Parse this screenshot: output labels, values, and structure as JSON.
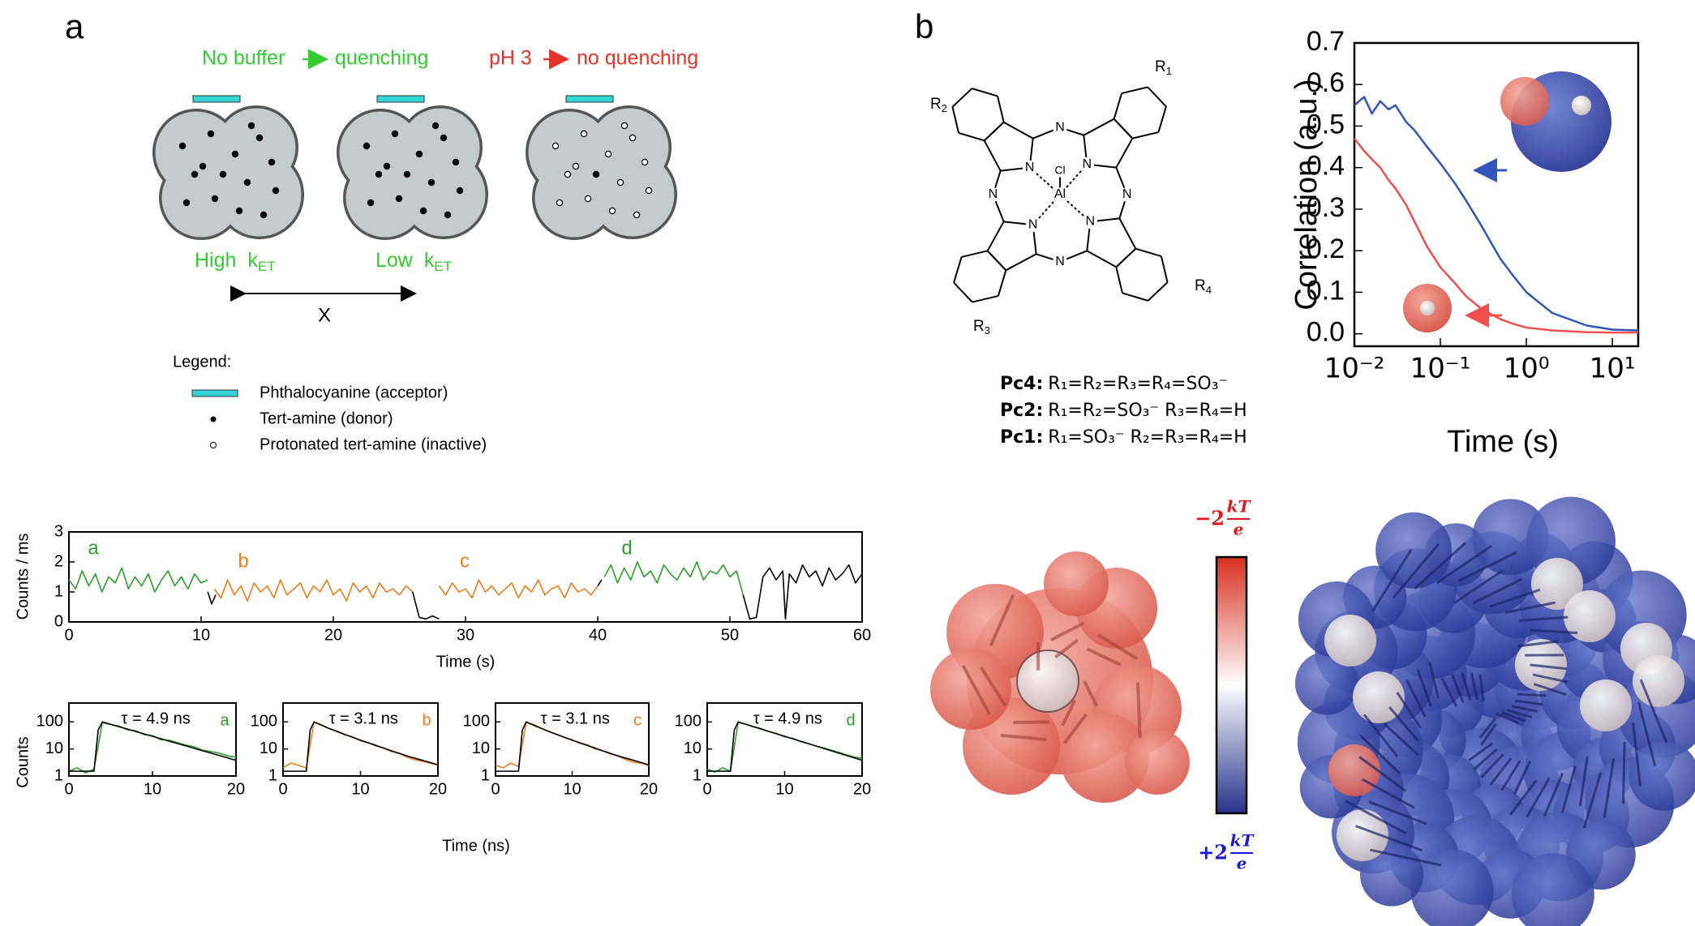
{
  "panel_labels": {
    "a": "a",
    "b": "b"
  },
  "scheme": {
    "condition_1": "No buffer",
    "result_1": "quenching",
    "condition_2": "pH 3",
    "result_2": "no quenching",
    "rate_high": "High",
    "rate_low": "Low",
    "rate_symbol": "k",
    "rate_subscript": "ET",
    "axis_label": "X"
  },
  "legend": {
    "title": "Legend:",
    "items": [
      "Phthalocyanine  (acceptor)",
      "Tert-amine  (donor)",
      "Protonated  tert-amine  (inactive)"
    ]
  },
  "structure": {
    "nitrogen": "N",
    "metal": "Al",
    "axial": "Cl",
    "substituents": [
      {
        "base": "R",
        "sub": "1"
      },
      {
        "base": "R",
        "sub": "2"
      },
      {
        "base": "R",
        "sub": "3"
      },
      {
        "base": "R",
        "sub": "4"
      }
    ]
  },
  "compounds": [
    {
      "name": "Pc4:",
      "formula": "R₁=R₂=R₃=R₄=SO₃⁻"
    },
    {
      "name": "Pc2:",
      "formula": "R₁=R₂=SO₃⁻  R₃=R₄=H"
    },
    {
      "name": "Pc1:",
      "formula": "R₁=SO₃⁻  R₂=R₃=R₄=H"
    }
  ],
  "colorbar": {
    "top": {
      "coef": "−2",
      "num": "kT",
      "den": "e"
    },
    "bottom": {
      "coef": "+2",
      "num": "kT",
      "den": "e"
    },
    "colors": [
      "#d7301f",
      "#ffffff",
      "#26328c"
    ]
  },
  "chart_data": [
    {
      "type": "line",
      "xlabel": "Time (s)",
      "ylabel": "Counts / ms",
      "xlim": [
        0,
        60
      ],
      "ylim": [
        0,
        3
      ],
      "xticks": [
        0,
        10,
        20,
        30,
        40,
        50,
        60
      ],
      "yticks": [
        0,
        1,
        2,
        3
      ],
      "annotations": [
        {
          "text": "a",
          "color": "#2ca02c"
        },
        {
          "text": "b",
          "color": "#f07d1a"
        },
        {
          "text": "c",
          "color": "#f07d1a"
        },
        {
          "text": "d",
          "color": "#2ca02c"
        }
      ],
      "series": [
        {
          "color": "#2ca02c",
          "x": [
            0,
            0.5,
            1,
            1.5,
            2,
            2.5,
            3,
            3.5,
            4,
            4.5,
            5,
            5.5,
            6,
            6.5,
            7,
            7.5,
            8,
            8.5,
            9,
            9.5,
            10,
            10.5
          ],
          "values": [
            1.4,
            1.1,
            1.7,
            1.2,
            1.6,
            1.0,
            1.5,
            1.3,
            1.8,
            1.1,
            1.5,
            1.2,
            1.6,
            1.0,
            1.4,
            1.7,
            1.2,
            1.5,
            1.1,
            1.6,
            1.3,
            1.4
          ]
        },
        {
          "color": "#000000",
          "x": [
            10.5,
            10.8,
            11.1
          ],
          "values": [
            1.0,
            0.6,
            0.9
          ]
        },
        {
          "color": "#f07d1a",
          "x": [
            11,
            11.5,
            12,
            12.5,
            13,
            13.5,
            14,
            14.5,
            15,
            15.5,
            16,
            16.5,
            17,
            17.5,
            18,
            18.5,
            19,
            19.5,
            20,
            20.5,
            21,
            21.5,
            22,
            22.5,
            23,
            23.5,
            24,
            24.5,
            25,
            25.5,
            26
          ],
          "values": [
            1.1,
            0.8,
            1.4,
            0.9,
            1.2,
            0.7,
            1.3,
            1.0,
            1.2,
            0.8,
            1.4,
            0.9,
            1.1,
            1.3,
            0.8,
            1.2,
            1.0,
            1.4,
            0.9,
            1.1,
            0.7,
            1.3,
            1.0,
            1.2,
            0.8,
            1.3,
            1.0,
            1.1,
            0.9,
            1.2,
            1.0
          ]
        },
        {
          "color": "#000000",
          "x": [
            26,
            26.5,
            27,
            27.5,
            28
          ],
          "values": [
            1.0,
            0.15,
            0.1,
            0.2,
            0.1
          ]
        },
        {
          "color": "#f07d1a",
          "x": [
            28,
            28.5,
            29,
            29.5,
            30,
            30.5,
            31,
            31.5,
            32,
            32.5,
            33,
            33.5,
            34,
            34.5,
            35,
            35.5,
            36,
            36.5,
            37,
            37.5,
            38,
            38.5,
            39,
            39.5,
            40
          ],
          "values": [
            1.2,
            0.9,
            1.3,
            1.0,
            1.1,
            0.8,
            1.4,
            1.0,
            1.2,
            0.9,
            1.1,
            1.3,
            0.8,
            1.2,
            1.0,
            1.4,
            0.9,
            1.1,
            1.2,
            0.8,
            1.3,
            1.0,
            1.1,
            0.9,
            1.2
          ]
        },
        {
          "color": "#000000",
          "x": [
            40,
            40.3
          ],
          "values": [
            1.2,
            1.4
          ]
        },
        {
          "color": "#2ca02c",
          "x": [
            40.5,
            41,
            41.5,
            42,
            42.5,
            43,
            43.5,
            44,
            44.5,
            45,
            45.5,
            46,
            46.5,
            47,
            47.5,
            48,
            48.5,
            49,
            49.5,
            50,
            50.5,
            51
          ],
          "values": [
            1.5,
            1.9,
            1.3,
            1.8,
            1.4,
            2.0,
            1.5,
            1.7,
            1.3,
            1.9,
            1.6,
            1.4,
            1.8,
            1.5,
            2.0,
            1.4,
            1.7,
            1.6,
            1.9,
            1.5,
            1.7,
            0.9
          ]
        },
        {
          "color": "#000000",
          "x": [
            51,
            51.5,
            52,
            52.5,
            53,
            53.5,
            54,
            54.2,
            54.5,
            55,
            55.5,
            56,
            56.5,
            57,
            57.5,
            58,
            58.5,
            59,
            59.5,
            60
          ],
          "values": [
            0.9,
            0.1,
            0.15,
            1.5,
            1.8,
            1.4,
            1.7,
            0.1,
            1.6,
            1.3,
            1.9,
            1.5,
            1.7,
            1.2,
            1.8,
            1.4,
            1.6,
            1.9,
            1.3,
            1.6
          ]
        }
      ]
    },
    {
      "type": "line",
      "ylabel": "Counts",
      "ylog": true,
      "xlim": [
        0,
        20
      ],
      "ylim": [
        1,
        500
      ],
      "xticks": [
        0,
        10,
        20
      ],
      "yticks": [
        1,
        10,
        100
      ],
      "annotations": [
        {
          "text": "τ = 4.9 ns",
          "color": "#000000"
        },
        {
          "text": "a",
          "color": "#2ca02c"
        }
      ],
      "series": [
        {
          "color": "#2ca02c",
          "x": [
            0,
            1,
            2,
            3,
            4,
            5,
            6,
            7,
            8,
            9,
            10,
            11,
            12,
            13,
            14,
            15,
            16,
            17,
            18,
            19,
            20
          ],
          "values": [
            1.5,
            2,
            1.3,
            1.8,
            95,
            80,
            70,
            52,
            47,
            34,
            31,
            22,
            21,
            17,
            14,
            12,
            9,
            8,
            7,
            5.5,
            5
          ]
        },
        {
          "color": "#000000",
          "x": [
            0,
            3,
            3.5,
            4,
            5,
            6,
            7,
            8,
            9,
            10,
            11,
            12,
            14,
            16,
            18,
            20
          ],
          "values": [
            1.5,
            1.5,
            50,
            100,
            81.5,
            66.5,
            54.2,
            44.2,
            36,
            29.4,
            23.9,
            19.5,
            13,
            8.6,
            5.7,
            3.8
          ]
        }
      ]
    },
    {
      "type": "line",
      "xlabel": "Time (ns)",
      "ylog": true,
      "xlim": [
        0,
        20
      ],
      "ylim": [
        1,
        500
      ],
      "xticks": [
        0,
        10,
        20
      ],
      "yticks": [
        1,
        10,
        100
      ],
      "annotations": [
        {
          "text": "τ = 3.1 ns",
          "color": "#000000"
        },
        {
          "text": "b",
          "color": "#f07d1a"
        }
      ],
      "series": [
        {
          "color": "#f07d1a",
          "x": [
            0,
            1,
            2,
            3,
            4,
            5,
            6,
            7,
            8,
            9,
            10,
            11,
            12,
            13,
            14,
            15,
            16,
            17,
            18,
            19,
            20
          ],
          "values": [
            2,
            3,
            2.5,
            2,
            98,
            78,
            55,
            46,
            33,
            28,
            20,
            17,
            13,
            11,
            8,
            7,
            5,
            4,
            3.5,
            3,
            2.5
          ]
        },
        {
          "color": "#000000",
          "x": [
            0,
            3,
            3.5,
            4,
            5,
            6,
            7,
            8,
            9,
            10,
            11,
            12,
            14,
            16,
            18,
            20
          ],
          "values": [
            1.5,
            1.5,
            50,
            100,
            75,
            57,
            44,
            34,
            27,
            21,
            17,
            13.5,
            8.5,
            5.5,
            3.8,
            2.6
          ]
        }
      ]
    },
    {
      "type": "line",
      "ylog": true,
      "xlim": [
        0,
        20
      ],
      "ylim": [
        1,
        500
      ],
      "xticks": [
        0,
        10,
        20
      ],
      "yticks": [
        1,
        10,
        100
      ],
      "annotations": [
        {
          "text": "τ = 3.1 ns",
          "color": "#000000"
        },
        {
          "text": "c",
          "color": "#f07d1a"
        }
      ],
      "series": [
        {
          "color": "#f07d1a",
          "x": [
            0,
            1,
            2,
            3,
            4,
            5,
            6,
            7,
            8,
            9,
            10,
            11,
            12,
            13,
            14,
            15,
            16,
            17,
            18,
            19,
            20
          ],
          "values": [
            2.5,
            2,
            3,
            2.2,
            96,
            80,
            58,
            44,
            35,
            26,
            22,
            16,
            14,
            10,
            8.5,
            6.5,
            5.5,
            4,
            3.2,
            3,
            2.4
          ]
        },
        {
          "color": "#000000",
          "x": [
            0,
            3,
            3.5,
            4,
            5,
            6,
            7,
            8,
            9,
            10,
            11,
            12,
            14,
            16,
            18,
            20
          ],
          "values": [
            1.5,
            1.5,
            50,
            100,
            75,
            57,
            44,
            34,
            27,
            21,
            17,
            13.5,
            8.5,
            5.5,
            3.8,
            2.6
          ]
        }
      ]
    },
    {
      "type": "line",
      "ylog": true,
      "xlim": [
        0,
        20
      ],
      "ylim": [
        1,
        500
      ],
      "xticks": [
        0,
        10,
        20
      ],
      "yticks": [
        1,
        10,
        100
      ],
      "annotations": [
        {
          "text": "τ = 4.9 ns",
          "color": "#000000"
        },
        {
          "text": "d",
          "color": "#2ca02c"
        }
      ],
      "series": [
        {
          "color": "#2ca02c",
          "x": [
            0,
            1,
            2,
            3,
            4,
            5,
            6,
            7,
            8,
            9,
            10,
            11,
            12,
            13,
            14,
            15,
            16,
            17,
            18,
            19,
            20
          ],
          "values": [
            1.8,
            1.4,
            2,
            1.5,
            97,
            82,
            66,
            56,
            43,
            37,
            28,
            25,
            19,
            16,
            13,
            11,
            9,
            7.5,
            6,
            5,
            4.5
          ]
        },
        {
          "color": "#000000",
          "x": [
            0,
            3,
            3.5,
            4,
            5,
            6,
            7,
            8,
            9,
            10,
            11,
            12,
            14,
            16,
            18,
            20
          ],
          "values": [
            1.5,
            1.5,
            50,
            100,
            81.5,
            66.5,
            54.2,
            44.2,
            36,
            29.4,
            23.9,
            19.5,
            13,
            8.6,
            5.7,
            3.8
          ]
        }
      ]
    },
    {
      "type": "line",
      "xlabel": "Time  (s)",
      "ylabel": "Correlation (a.u.)",
      "xlog": true,
      "xlim": [
        0.01,
        20
      ],
      "ylim": [
        -0.03,
        0.7
      ],
      "xticks": [
        {
          "value": 0.01,
          "label": "10⁻²"
        },
        {
          "value": 0.1,
          "label": "10⁻¹"
        },
        {
          "value": 1,
          "label": "10⁰"
        },
        {
          "value": 10,
          "label": "10¹"
        }
      ],
      "yticks": [
        {
          "value": 0,
          "label": "0.0"
        },
        0.1,
        0.2,
        0.3,
        0.4,
        0.5,
        0.6,
        0.7
      ],
      "series": [
        {
          "color": "#2f56b8",
          "x": [
            0.01,
            0.013,
            0.016,
            0.02,
            0.025,
            0.03,
            0.04,
            0.05,
            0.07,
            0.1,
            0.15,
            0.2,
            0.3,
            0.5,
            0.7,
            1,
            2,
            5,
            10,
            20
          ],
          "values": [
            0.55,
            0.57,
            0.53,
            0.56,
            0.54,
            0.55,
            0.51,
            0.49,
            0.45,
            0.41,
            0.36,
            0.32,
            0.26,
            0.18,
            0.14,
            0.1,
            0.05,
            0.02,
            0.01,
            0.008
          ]
        },
        {
          "color": "#f05050",
          "x": [
            0.01,
            0.013,
            0.016,
            0.02,
            0.025,
            0.03,
            0.04,
            0.05,
            0.07,
            0.1,
            0.15,
            0.2,
            0.3,
            0.5,
            0.7,
            1,
            2,
            5,
            10,
            20
          ],
          "values": [
            0.47,
            0.44,
            0.42,
            0.4,
            0.37,
            0.35,
            0.31,
            0.27,
            0.21,
            0.16,
            0.12,
            0.09,
            0.06,
            0.035,
            0.024,
            0.015,
            0.008,
            0.004,
            0.003,
            0.003
          ]
        }
      ]
    }
  ]
}
